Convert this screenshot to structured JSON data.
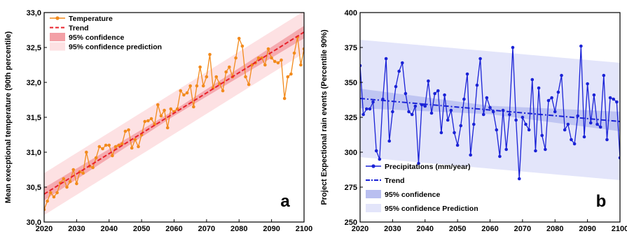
{
  "chart_data": [
    {
      "type": "line",
      "panel_label": "a",
      "ylabel": "Mean execptional temperature (90th percentile)",
      "xlim": [
        2020,
        2100
      ],
      "ylim": [
        30.0,
        33.0
      ],
      "xticks": [
        2020,
        2030,
        2040,
        2050,
        2060,
        2070,
        2080,
        2090,
        2100
      ],
      "yticks": [
        "30,0",
        "30,5",
        "31,0",
        "31,5",
        "32,0",
        "32,5",
        "33,0"
      ],
      "ytick_values": [
        30.0,
        30.5,
        31.0,
        31.5,
        32.0,
        32.5,
        33.0
      ],
      "legend_position": "top-left",
      "colors": {
        "series": "#f28a1c",
        "trend": "#e8202a",
        "ci": "#f3a0a6",
        "pi": "#fde1e3"
      },
      "legend": {
        "series": "Temperature",
        "trend": "Trend",
        "ci": "95% confidence",
        "pi": "95% confidence prediction"
      },
      "series": [
        {
          "name": "Temperature",
          "x": [
            2020,
            2021,
            2022,
            2023,
            2024,
            2025,
            2026,
            2027,
            2028,
            2029,
            2030,
            2031,
            2032,
            2033,
            2034,
            2035,
            2036,
            2037,
            2038,
            2039,
            2040,
            2041,
            2042,
            2043,
            2044,
            2045,
            2046,
            2047,
            2048,
            2049,
            2050,
            2051,
            2052,
            2053,
            2054,
            2055,
            2056,
            2057,
            2058,
            2059,
            2060,
            2061,
            2062,
            2063,
            2064,
            2065,
            2066,
            2067,
            2068,
            2069,
            2070,
            2071,
            2072,
            2073,
            2074,
            2075,
            2076,
            2077,
            2078,
            2079,
            2080,
            2081,
            2082,
            2083,
            2084,
            2085,
            2086,
            2087,
            2088,
            2089,
            2090,
            2091,
            2092,
            2093,
            2094,
            2095,
            2096,
            2097,
            2098,
            2099,
            2100
          ],
          "values": [
            30.18,
            30.3,
            30.42,
            30.36,
            30.42,
            30.56,
            30.62,
            30.5,
            30.58,
            30.75,
            30.55,
            30.72,
            30.7,
            31.0,
            30.8,
            30.78,
            30.92,
            31.08,
            31.05,
            31.1,
            31.1,
            30.95,
            31.08,
            31.1,
            31.12,
            31.3,
            31.32,
            31.06,
            31.18,
            31.08,
            31.25,
            31.44,
            31.45,
            31.48,
            31.4,
            31.68,
            31.52,
            31.6,
            31.35,
            31.62,
            31.58,
            31.62,
            31.88,
            31.82,
            31.85,
            31.95,
            31.65,
            31.95,
            32.22,
            31.95,
            32.08,
            32.4,
            31.92,
            32.08,
            31.98,
            31.88,
            32.15,
            32.22,
            32.08,
            32.35,
            32.63,
            32.52,
            32.08,
            31.97,
            32.25,
            32.28,
            32.35,
            32.35,
            32.25,
            32.48,
            32.35,
            32.3,
            32.28,
            32.32,
            31.77,
            32.08,
            32.12,
            32.42,
            32.65,
            32.25,
            32.48
          ]
        }
      ],
      "trend": {
        "start": 30.4,
        "end": 32.72
      },
      "ci_halfwidth": {
        "start": 0.09,
        "mid": 0.04,
        "end": 0.09
      },
      "pi_halfwidth": 0.3
    },
    {
      "type": "line",
      "panel_label": "b",
      "ylabel": "Project Expectional rain events (Percentile 90%)",
      "xlim": [
        2020,
        2100
      ],
      "ylim": [
        250,
        400
      ],
      "xticks": [
        2020,
        2030,
        2040,
        2050,
        2060,
        2070,
        2080,
        2090,
        2100
      ],
      "yticks": [
        "250",
        "275",
        "300",
        "325",
        "350",
        "375",
        "400"
      ],
      "ytick_values": [
        250,
        275,
        300,
        325,
        350,
        375,
        400
      ],
      "legend_position": "bottom-left",
      "colors": {
        "series": "#1a22d6",
        "trend": "#1a22d6",
        "ci": "#b9bff0",
        "pi": "#e3e5fa"
      },
      "legend": {
        "series": "Precipitations (mm/year)",
        "trend": "Trend",
        "ci": "95% confidence",
        "pi": "95% confidence Prediction"
      },
      "series": [
        {
          "name": "Precipitations (mm/year)",
          "x": [
            2020,
            2021,
            2022,
            2023,
            2024,
            2025,
            2026,
            2027,
            2028,
            2029,
            2030,
            2031,
            2032,
            2033,
            2034,
            2035,
            2036,
            2037,
            2038,
            2039,
            2040,
            2041,
            2042,
            2043,
            2044,
            2045,
            2046,
            2047,
            2048,
            2049,
            2050,
            2051,
            2052,
            2053,
            2054,
            2055,
            2056,
            2057,
            2058,
            2059,
            2060,
            2061,
            2062,
            2063,
            2064,
            2065,
            2066,
            2067,
            2068,
            2069,
            2070,
            2071,
            2072,
            2073,
            2074,
            2075,
            2076,
            2077,
            2078,
            2079,
            2080,
            2081,
            2082,
            2083,
            2084,
            2085,
            2086,
            2087,
            2088,
            2089,
            2090,
            2091,
            2092,
            2093,
            2094,
            2095,
            2096,
            2097,
            2098,
            2099,
            2100
          ],
          "values": [
            362,
            327,
            331,
            331,
            336,
            301,
            295,
            338,
            367,
            308,
            329,
            347,
            358,
            364,
            342,
            329,
            327,
            333,
            292,
            334,
            333,
            351,
            328,
            342,
            344,
            314,
            341,
            323,
            330,
            314,
            305,
            319,
            338,
            356,
            298,
            320,
            348,
            367,
            327,
            339,
            332,
            329,
            316,
            297,
            330,
            302,
            327,
            375,
            323,
            281,
            325,
            320,
            316,
            352,
            301,
            346,
            312,
            302,
            337,
            339,
            329,
            343,
            355,
            316,
            320,
            309,
            306,
            326,
            376,
            311,
            349,
            321,
            341,
            320,
            318,
            355,
            309,
            339,
            338,
            336,
            296
          ]
        }
      ],
      "trend": {
        "start": 338.5,
        "end": 322.0
      },
      "ci_halfwidth": {
        "start": 7,
        "mid": 3,
        "end": 7
      },
      "pi_halfwidth": 42
    }
  ]
}
